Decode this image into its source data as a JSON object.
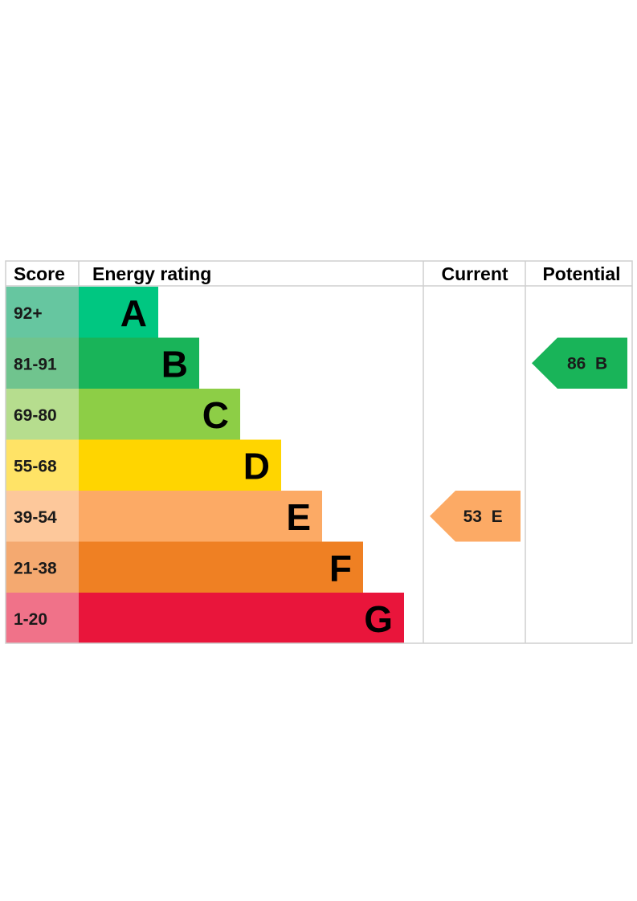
{
  "chart_data": {
    "type": "bar",
    "headers": {
      "score": "Score",
      "rating": "Energy rating",
      "current": "Current",
      "potential": "Potential"
    },
    "bands": [
      {
        "score": "92+",
        "letter": "A",
        "min": 92,
        "max": 100,
        "color": "#00c781",
        "score_bg": "#66c6a0"
      },
      {
        "score": "81-91",
        "letter": "B",
        "min": 81,
        "max": 91,
        "color": "#19b459",
        "score_bg": "#70c48e"
      },
      {
        "score": "69-80",
        "letter": "C",
        "min": 69,
        "max": 80,
        "color": "#8dce46",
        "score_bg": "#b6dd8e"
      },
      {
        "score": "55-68",
        "letter": "D",
        "min": 55,
        "max": 68,
        "color": "#ffd500",
        "score_bg": "#ffe366"
      },
      {
        "score": "39-54",
        "letter": "E",
        "min": 39,
        "max": 54,
        "color": "#fcaa65",
        "score_bg": "#fdc89b"
      },
      {
        "score": "21-38",
        "letter": "F",
        "min": 21,
        "max": 38,
        "color": "#ef8023",
        "score_bg": "#f4a970"
      },
      {
        "score": "1-20",
        "letter": "G",
        "min": 1,
        "max": 20,
        "color": "#e9153b",
        "score_bg": "#f07289"
      }
    ],
    "current": {
      "value": 53,
      "letter": "E",
      "label": "53  E",
      "color": "#fcaa65"
    },
    "potential": {
      "value": 86,
      "letter": "B",
      "label": "86  B",
      "color": "#19b459"
    }
  }
}
